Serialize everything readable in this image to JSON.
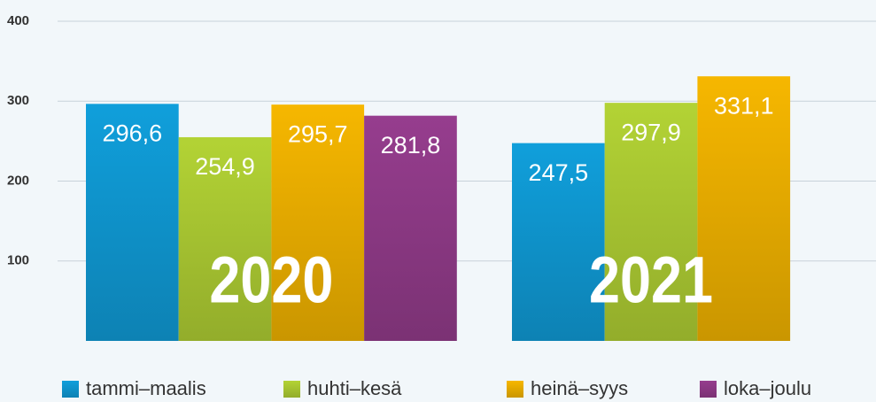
{
  "chart_data": {
    "type": "bar",
    "categories": [
      "2020",
      "2021"
    ],
    "series": [
      {
        "name": "tammi–maalis",
        "color": "#109fdb",
        "values": [
          296.6,
          247.5
        ],
        "value_labels": [
          "296,6",
          "247,5"
        ]
      },
      {
        "name": "huhti–kesä",
        "color": "#b3d335",
        "values": [
          254.9,
          297.9
        ],
        "value_labels": [
          "254,9",
          "297,9"
        ]
      },
      {
        "name": "heinä–syys",
        "color": "#f6b700",
        "values": [
          295.7,
          331.1
        ],
        "value_labels": [
          "295,7",
          "331,1"
        ]
      },
      {
        "name": "loka–joulu",
        "color": "#963d8e",
        "values": [
          281.8,
          null
        ],
        "value_labels": [
          "281,8",
          null
        ]
      }
    ],
    "ylim": [
      0,
      400
    ],
    "yticks": [
      100,
      200,
      300,
      400
    ],
    "grid": true
  }
}
